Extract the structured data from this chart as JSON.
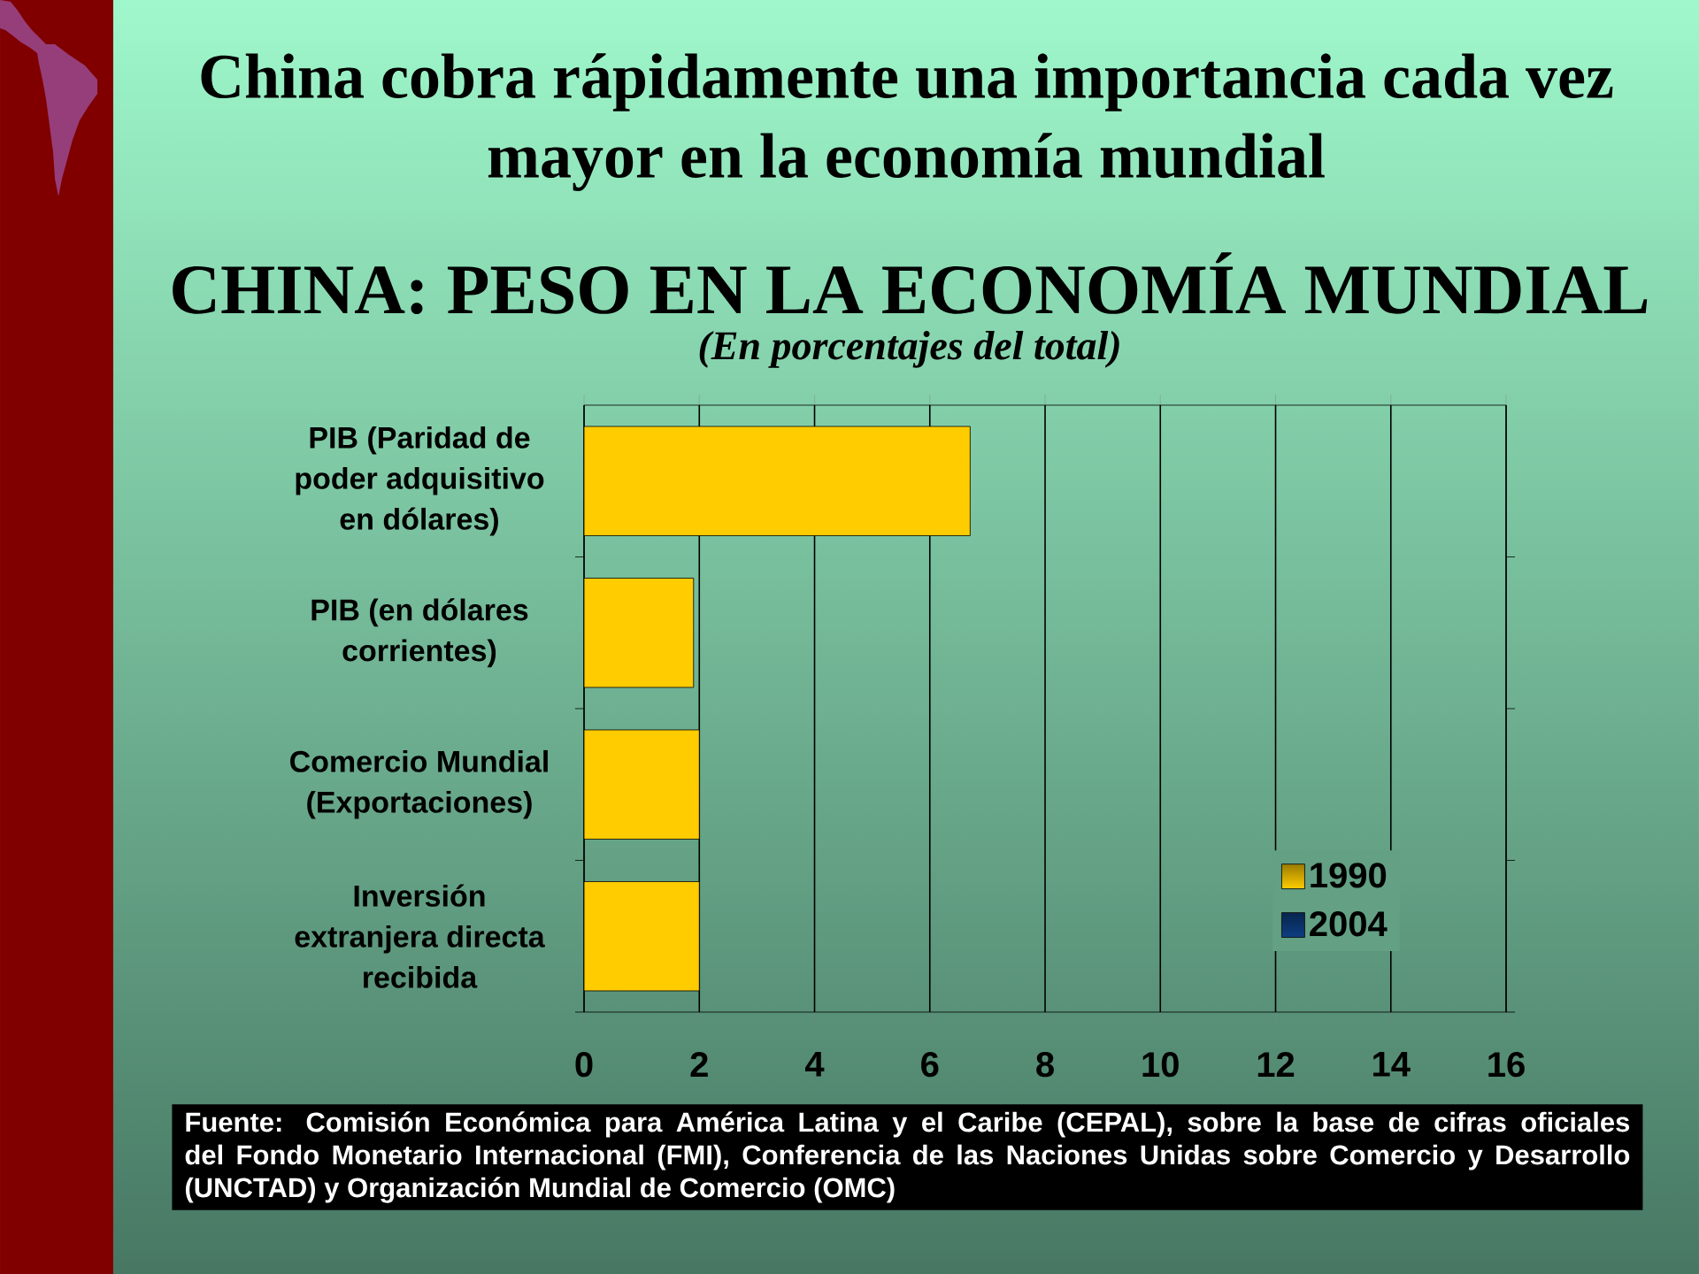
{
  "chart_data": {
    "type": "bar",
    "orientation": "horizontal",
    "title": "CHINA: PESO EN LA ECONOMÍA MUNDIAL",
    "subtitle": "(En porcentajes del total)",
    "categories": [
      "PIB (Paridad de poder adquisitivo en dólares)",
      "PIB (en dólares corrientes)",
      "Comercio Mundial (Exportaciones)",
      "Inversión extranjera directa recibida"
    ],
    "series": [
      {
        "name": "1990",
        "color": "#ffcc00",
        "values": [
          6.7,
          1.9,
          2.0,
          2.0
        ]
      },
      {
        "name": "2004",
        "color": "#0e3d80",
        "values": [
          null,
          null,
          null,
          null
        ]
      }
    ],
    "xlim": [
      0,
      16
    ],
    "xticks": [
      0,
      2,
      4,
      6,
      8,
      10,
      12,
      14,
      16
    ],
    "grid": "x",
    "legend": "bottom right",
    "annotations": [
      "China cobra rápidamente una importancia cada vez mayor en la economía mundial",
      "Fuente: Comisión Económica para América Latina y el Caribe (CEPAL), sobre la base de cifras oficiales del Fondo Monetario Internacional (FMI), Conferencia de las Naciones Unidas sobre Comercio y Desarrollo (UNCTAD) y Organización Mundial de Comercio (OMC)"
    ]
  }
}
